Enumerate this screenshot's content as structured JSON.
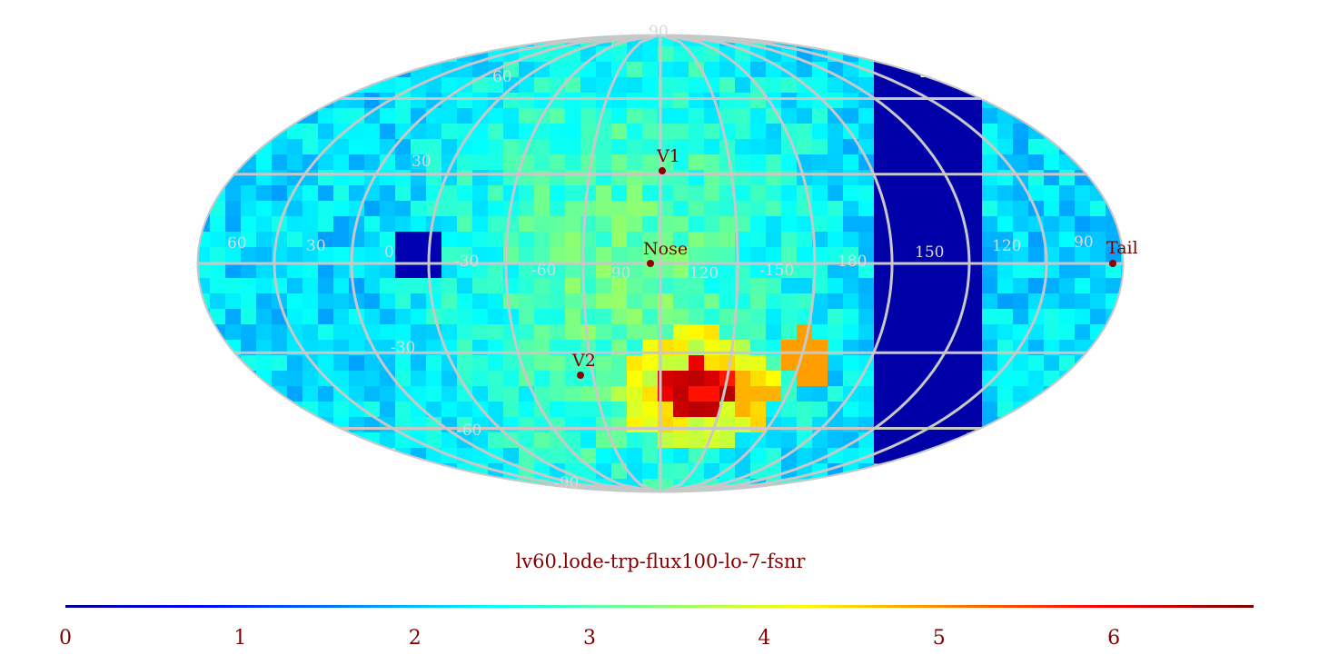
{
  "map": {
    "title": "lv60.lode-trp-flux100-lo-7-fsnr",
    "projection": "mollweide",
    "lat_labels": [
      {
        "lat": 90,
        "text": "90"
      },
      {
        "lat": 60,
        "text": "60"
      },
      {
        "lat": 30,
        "text": "30"
      },
      {
        "lat": -30,
        "text": "-30"
      },
      {
        "lat": -60,
        "text": "-60"
      },
      {
        "lat": -90,
        "text": "-90"
      }
    ],
    "lon_labels": [
      "60",
      "30",
      "0",
      "-30",
      "-60",
      "-90",
      "-120",
      "-150",
      "180",
      "150",
      "120",
      "90"
    ],
    "markers": [
      {
        "name": "V1",
        "label": "V1"
      },
      {
        "name": "Nose",
        "label": "Nose"
      },
      {
        "name": "V2",
        "label": "V2"
      },
      {
        "name": "Tail",
        "label": "Tail"
      }
    ],
    "colors": {
      "grid": "#c8c8c8",
      "marker": "#8b0000",
      "background": "#ffffff"
    }
  },
  "colorbar": {
    "min": 0,
    "max": 6.8,
    "ticks": [
      "0",
      "1",
      "2",
      "3",
      "4",
      "5",
      "6"
    ],
    "colormap": "jet"
  }
}
